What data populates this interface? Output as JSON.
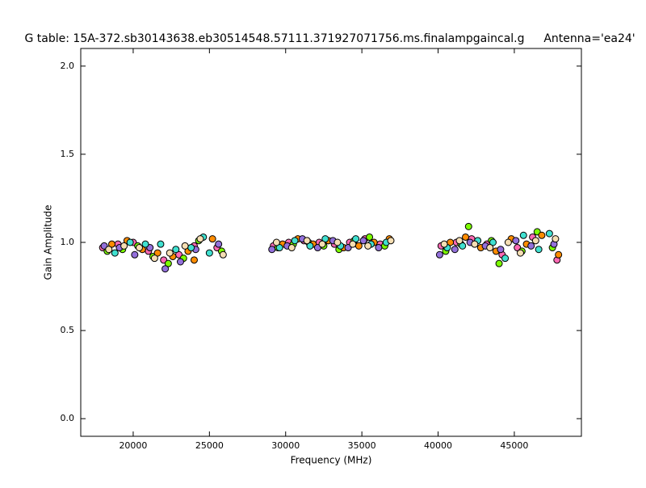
{
  "chart_data": {
    "type": "scatter",
    "title": "G table: 15A-372.sb30143638.eb30514548.57111.371927071756.ms.finalampgaincal.g",
    "annotation": "Antenna='ea24'",
    "x_label": "Frequency (MHz)",
    "y_label": "Gain Amplitude",
    "xlim": [
      16560,
      49400
    ],
    "ylim": [
      -0.1,
      2.1
    ],
    "xticks": [
      20000,
      25000,
      30000,
      35000,
      40000,
      45000
    ],
    "yticks": [
      {
        "value": 0,
        "label": "0.0"
      },
      0.5,
      {
        "value": 1,
        "label": "1.0"
      },
      1.5,
      {
        "value": 2,
        "label": "2.0"
      }
    ],
    "series": [
      {
        "color": "#ff69b4",
        "x": [
          18000,
          19000,
          20000,
          21000,
          22000,
          23000,
          24000,
          25500,
          29200,
          30200,
          31200,
          32200,
          33200,
          34200,
          35200,
          36200,
          40200,
          41200,
          42200,
          43200,
          44200,
          45200,
          46200,
          47800
        ],
        "y": [
          0.97,
          0.99,
          1.0,
          0.95,
          0.9,
          0.93,
          0.98,
          0.97,
          0.98,
          1.0,
          1.01,
          1.0,
          0.99,
          1.0,
          1.02,
          0.99,
          0.98,
          1.0,
          1.02,
          0.99,
          0.93,
          0.97,
          1.03,
          0.9
        ]
      },
      {
        "color": "#7cfc00",
        "x": [
          18300,
          19300,
          20300,
          21300,
          22300,
          23300,
          24300,
          25800,
          29500,
          30500,
          31500,
          32500,
          33500,
          34500,
          35500,
          36500,
          40500,
          41500,
          42000,
          43500,
          44000,
          45500,
          46500,
          47500
        ],
        "y": [
          0.95,
          0.96,
          0.98,
          0.92,
          0.88,
          0.91,
          1.01,
          0.95,
          0.97,
          0.99,
          1.0,
          0.98,
          0.96,
          1.01,
          1.03,
          0.98,
          0.95,
          0.99,
          1.09,
          1.01,
          0.88,
          0.95,
          1.06,
          0.97
        ]
      },
      {
        "color": "#ff8c00",
        "x": [
          18600,
          19600,
          20600,
          21600,
          22600,
          23600,
          24000,
          25200,
          29800,
          30800,
          31800,
          32800,
          33800,
          34800,
          35800,
          36800,
          40800,
          41800,
          42800,
          43800,
          44800,
          45800,
          46800,
          47900
        ],
        "y": [
          0.99,
          1.01,
          0.96,
          0.94,
          0.92,
          0.95,
          0.9,
          1.02,
          0.99,
          1.02,
          0.99,
          1.01,
          0.97,
          0.98,
          1.0,
          1.02,
          1.0,
          1.03,
          0.97,
          0.95,
          1.02,
          0.99,
          1.04,
          0.93
        ]
      },
      {
        "color": "#9370db",
        "x": [
          18100,
          19100,
          20100,
          21100,
          22100,
          23100,
          24100,
          25600,
          29100,
          30100,
          31100,
          32100,
          33100,
          34100,
          35100,
          36100,
          40100,
          41100,
          42100,
          43100,
          44100,
          45100,
          46100,
          47600
        ],
        "y": [
          0.98,
          0.97,
          0.93,
          0.97,
          0.85,
          0.89,
          0.96,
          0.99,
          0.96,
          0.98,
          1.02,
          0.97,
          1.01,
          0.97,
          1.01,
          0.97,
          0.93,
          0.96,
          1.0,
          0.98,
          0.96,
          1.01,
          0.98,
          0.99
        ]
      },
      {
        "color": "#40e0d0",
        "x": [
          18800,
          19800,
          20800,
          21800,
          22800,
          23800,
          24600,
          25000,
          29600,
          30600,
          31600,
          32600,
          33600,
          34600,
          35600,
          36600,
          40600,
          41600,
          42600,
          43600,
          44400,
          45600,
          46600,
          47300
        ],
        "y": [
          0.94,
          1.0,
          0.99,
          0.99,
          0.96,
          0.97,
          1.03,
          0.94,
          0.97,
          1.01,
          0.98,
          1.02,
          0.98,
          1.02,
          0.99,
          1.0,
          0.97,
          0.98,
          1.01,
          1.0,
          0.91,
          1.04,
          0.96,
          1.05
        ]
      },
      {
        "color": "#f5deb3",
        "x": [
          18400,
          19400,
          20400,
          21400,
          22400,
          23400,
          24400,
          25900,
          29400,
          30400,
          31400,
          32400,
          33400,
          34400,
          35400,
          36900,
          40400,
          41400,
          42400,
          43400,
          44600,
          45400,
          46400,
          47700
        ],
        "y": [
          0.96,
          0.98,
          0.97,
          0.91,
          0.94,
          0.98,
          1.02,
          0.93,
          1.0,
          0.97,
          1.01,
          0.99,
          1.0,
          0.99,
          0.98,
          1.01,
          0.99,
          1.01,
          0.99,
          0.97,
          1.0,
          0.94,
          1.01,
          1.02
        ]
      }
    ]
  }
}
